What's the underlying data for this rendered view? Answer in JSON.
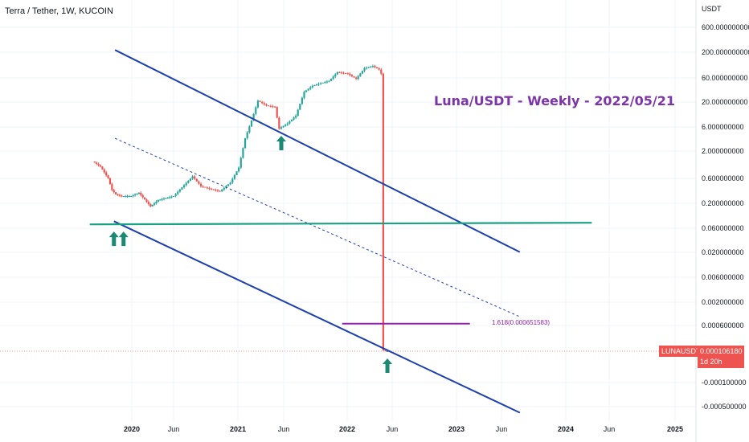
{
  "header": {
    "symbol_title": "Terra / Tether, 1W, KUCOIN"
  },
  "annotation": {
    "text": "Luna/USDT - Weekly - 2022/05/21"
  },
  "price_tag": {
    "symbol": "LUNAUSDT",
    "value": "0.000106180",
    "countdown": "1d 20h"
  },
  "fib": {
    "label": "1.618(0.000651583)",
    "value": 0.000651583
  },
  "colors": {
    "channel": "#1e40af",
    "support": "#1aa083",
    "candle_up": "#26a69a",
    "candle_down": "#ef5350",
    "arrow": "#1a8a73",
    "annotation": "#7b35a8",
    "fib": "#8e24aa"
  },
  "chart_data": {
    "type": "candlestick",
    "title": "Terra / Tether, 1W, KUCOIN",
    "y_axis": {
      "unit": "USDT",
      "scale": "log",
      "tick_labels": [
        "600.000000000",
        "200.000000000",
        "60.000000000",
        "20.000000000",
        "6.000000000",
        "2.000000000",
        "0.600000000",
        "0.200000000",
        "0.060000000",
        "0.020000000",
        "0.006000000",
        "0.002000000",
        "0.000600000",
        "-0.000100000",
        "-0.000500000"
      ],
      "tick_values": [
        600,
        200,
        60,
        20,
        6,
        2,
        0.6,
        0.2,
        0.06,
        0.02,
        0.006,
        0.002,
        0.0006,
        -0.0001,
        -0.0005
      ]
    },
    "x_axis": {
      "tick_labels": [
        "2020",
        "Jun",
        "2021",
        "Jun",
        "2022",
        "Jun",
        "2023",
        "Jun",
        "2024",
        "Jun",
        "2025"
      ],
      "tick_dates": [
        "2020-01-01",
        "2020-06-01",
        "2021-01-01",
        "2021-06-01",
        "2022-01-01",
        "2022-06-01",
        "2023-01-01",
        "2023-06-01",
        "2024-01-01",
        "2024-06-01",
        "2025-01-01"
      ],
      "bold_labels": [
        "2020",
        "2021",
        "2022",
        "2023",
        "2024",
        "2025"
      ]
    },
    "last_price": 0.00010618,
    "price_path": [
      [
        "2019-08-19",
        1.2
      ],
      [
        "2019-09-16",
        0.95
      ],
      [
        "2019-10-14",
        0.55
      ],
      [
        "2019-10-28",
        0.32
      ],
      [
        "2019-11-11",
        0.26
      ],
      [
        "2019-12-02",
        0.24
      ],
      [
        "2020-01-06",
        0.24
      ],
      [
        "2020-02-03",
        0.28
      ],
      [
        "2020-03-16",
        0.15
      ],
      [
        "2020-04-13",
        0.2
      ],
      [
        "2020-05-11",
        0.22
      ],
      [
        "2020-06-08",
        0.24
      ],
      [
        "2020-07-13",
        0.4
      ],
      [
        "2020-08-10",
        0.6
      ],
      [
        "2020-09-07",
        0.38
      ],
      [
        "2020-10-12",
        0.33
      ],
      [
        "2020-11-09",
        0.3
      ],
      [
        "2020-12-14",
        0.45
      ],
      [
        "2021-01-11",
        0.9
      ],
      [
        "2021-02-01",
        3.5
      ],
      [
        "2021-02-22",
        8
      ],
      [
        "2021-03-15",
        20
      ],
      [
        "2021-04-12",
        16
      ],
      [
        "2021-05-10",
        15
      ],
      [
        "2021-05-24",
        5.5
      ],
      [
        "2021-06-21",
        7
      ],
      [
        "2021-07-19",
        10
      ],
      [
        "2021-08-16",
        30
      ],
      [
        "2021-09-13",
        40
      ],
      [
        "2021-10-11",
        45
      ],
      [
        "2021-11-08",
        50
      ],
      [
        "2021-12-06",
        75
      ],
      [
        "2022-01-10",
        70
      ],
      [
        "2022-02-07",
        55
      ],
      [
        "2022-03-07",
        90
      ],
      [
        "2022-04-04",
        100
      ],
      [
        "2022-04-25",
        85
      ],
      [
        "2022-05-02",
        70
      ],
      [
        "2022-05-09",
        0.00012
      ],
      [
        "2022-05-16",
        0.00010618
      ]
    ],
    "trend_lines": [
      {
        "name": "channel-upper",
        "style": "solid",
        "start": [
          "2019-11-01",
          210
        ],
        "end": [
          "2023-08-01",
          0.018
        ]
      },
      {
        "name": "channel-lower",
        "style": "solid",
        "start": [
          "2019-10-28",
          0.075
        ],
        "end": [
          "2023-08-01",
          -0.0006
        ]
      },
      {
        "name": "channel-mid",
        "style": "dashed",
        "start": [
          "2019-11-01",
          3.5
        ],
        "end": [
          "2023-08-01",
          0.0009
        ]
      },
      {
        "name": "horizontal-support",
        "style": "solid",
        "start": [
          "2019-08-01",
          0.065
        ],
        "end": [
          "2024-04-01",
          0.07
        ]
      }
    ],
    "arrows": [
      {
        "date": "2019-10-28",
        "price": 0.065
      },
      {
        "date": "2019-12-02",
        "price": 0.065
      },
      {
        "date": "2021-05-24",
        "price": 5.5
      },
      {
        "date": "2022-05-16",
        "price": 0.00010618
      }
    ]
  }
}
